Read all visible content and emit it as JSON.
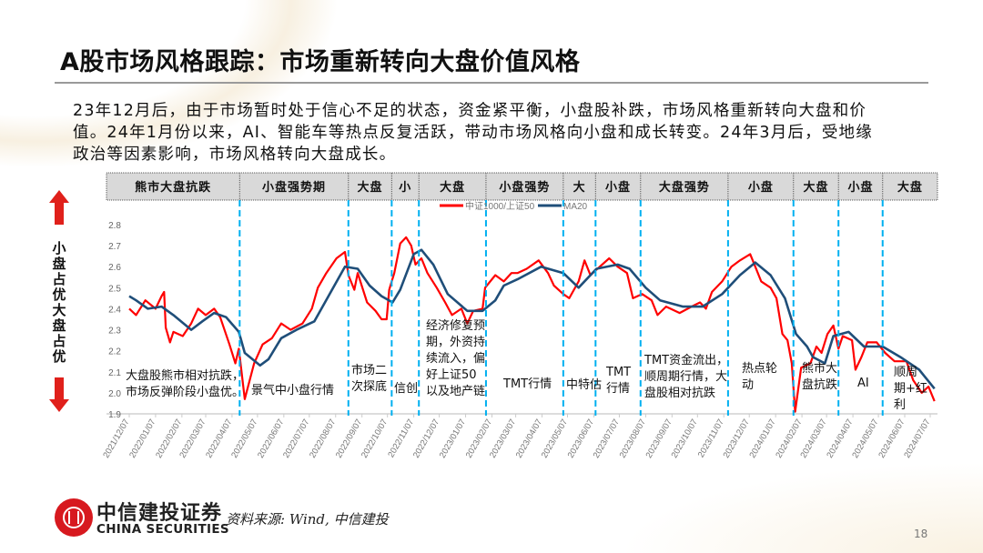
{
  "title": "A股市场风格跟踪：市场重新转向大盘价值风格",
  "paragraph_lines": [
    "23年12月后，由于市场暂时处于信心不足的状态，资金紧平衡，小盘股补跌，市场风格重新转向大盘和价",
    "值。24年1月份以来，AI、智能车等热点反复活跃，带动市场风格向小盘和成长转变。24年3月后，受地缘",
    "政治等因素影响，市场风格转向大盘成长。"
  ],
  "side_label": "小盘占优 大盘占优",
  "chart_data": {
    "type": "line",
    "ylim": [
      1.9,
      2.8
    ],
    "yticks": [
      "1.9",
      "2.0",
      "2.1",
      "2.2",
      "2.3",
      "2.4",
      "2.5",
      "2.6",
      "2.7",
      "2.8"
    ],
    "xlim": [
      "2021-12-07",
      "2024-07-07"
    ],
    "xticks": [
      "2021/12/07",
      "2022/01/07",
      "2022/02/07",
      "2022/03/07",
      "2022/04/07",
      "2022/05/07",
      "2022/06/07",
      "2022/07/07",
      "2022/08/07",
      "2022/09/07",
      "2022/10/07",
      "2022/11/07",
      "2022/12/07",
      "2023/01/07",
      "2023/02/07",
      "2023/03/07",
      "2023/04/07",
      "2023/05/07",
      "2023/06/07",
      "2023/07/07",
      "2023/08/07",
      "2023/09/07",
      "2023/10/07",
      "2023/11/07",
      "2023/12/07",
      "2024/01/07",
      "2024/02/07",
      "2024/03/07",
      "2024/04/07",
      "2024/05/07",
      "2024/06/07",
      "2024/07/07"
    ],
    "grid": false,
    "legend_position": "top-center",
    "series": [
      {
        "name": "中证1000/上证50",
        "color": "#ff0000",
        "points": [
          [
            "2021-12-07",
            2.4
          ],
          [
            "2021-12-15",
            2.37
          ],
          [
            "2021-12-26",
            2.44
          ],
          [
            "2022-01-07",
            2.4
          ],
          [
            "2022-01-14",
            2.46
          ],
          [
            "2022-01-17",
            2.48
          ],
          [
            "2022-01-19",
            2.31
          ],
          [
            "2022-01-24",
            2.24
          ],
          [
            "2022-01-28",
            2.29
          ],
          [
            "2022-02-08",
            2.27
          ],
          [
            "2022-02-18",
            2.33
          ],
          [
            "2022-02-26",
            2.4
          ],
          [
            "2022-03-07",
            2.37
          ],
          [
            "2022-03-17",
            2.4
          ],
          [
            "2022-03-24",
            2.36
          ],
          [
            "2022-04-04",
            2.23
          ],
          [
            "2022-04-11",
            2.14
          ],
          [
            "2022-04-15",
            2.21
          ],
          [
            "2022-04-22",
            1.97
          ],
          [
            "2022-05-03",
            2.14
          ],
          [
            "2022-05-13",
            2.23
          ],
          [
            "2022-05-24",
            2.26
          ],
          [
            "2022-06-04",
            2.33
          ],
          [
            "2022-06-15",
            2.3
          ],
          [
            "2022-06-29",
            2.33
          ],
          [
            "2022-07-10",
            2.4
          ],
          [
            "2022-07-17",
            2.5
          ],
          [
            "2022-07-27",
            2.57
          ],
          [
            "2022-08-08",
            2.64
          ],
          [
            "2022-08-18",
            2.67
          ],
          [
            "2022-08-22",
            2.56
          ],
          [
            "2022-08-29",
            2.49
          ],
          [
            "2022-09-02",
            2.57
          ],
          [
            "2022-09-13",
            2.43
          ],
          [
            "2022-09-23",
            2.39
          ],
          [
            "2022-09-30",
            2.35
          ],
          [
            "2022-10-06",
            2.35
          ],
          [
            "2022-10-09",
            2.49
          ],
          [
            "2022-10-15",
            2.57
          ],
          [
            "2022-10-22",
            2.71
          ],
          [
            "2022-10-29",
            2.74
          ],
          [
            "2022-11-04",
            2.7
          ],
          [
            "2022-11-09",
            2.61
          ],
          [
            "2022-11-16",
            2.64
          ],
          [
            "2022-11-23",
            2.57
          ],
          [
            "2022-12-04",
            2.5
          ],
          [
            "2022-12-14",
            2.43
          ],
          [
            "2022-12-22",
            2.37
          ],
          [
            "2023-01-02",
            2.4
          ],
          [
            "2023-01-09",
            2.33
          ],
          [
            "2023-01-16",
            2.39
          ],
          [
            "2023-01-27",
            2.4
          ],
          [
            "2023-01-30",
            2.5
          ],
          [
            "2023-02-11",
            2.56
          ],
          [
            "2023-02-21",
            2.53
          ],
          [
            "2023-03-02",
            2.57
          ],
          [
            "2023-03-09",
            2.57
          ],
          [
            "2023-03-20",
            2.59
          ],
          [
            "2023-04-03",
            2.63
          ],
          [
            "2023-04-14",
            2.57
          ],
          [
            "2023-04-21",
            2.51
          ],
          [
            "2023-05-02",
            2.47
          ],
          [
            "2023-05-09",
            2.45
          ],
          [
            "2023-05-20",
            2.53
          ],
          [
            "2023-05-27",
            2.63
          ],
          [
            "2023-06-03",
            2.56
          ],
          [
            "2023-06-14",
            2.6
          ],
          [
            "2023-06-25",
            2.64
          ],
          [
            "2023-07-05",
            2.6
          ],
          [
            "2023-07-16",
            2.57
          ],
          [
            "2023-07-23",
            2.45
          ],
          [
            "2023-08-03",
            2.47
          ],
          [
            "2023-08-14",
            2.44
          ],
          [
            "2023-08-21",
            2.37
          ],
          [
            "2023-08-31",
            2.41
          ],
          [
            "2023-09-16",
            2.38
          ],
          [
            "2023-09-30",
            2.41
          ],
          [
            "2023-10-10",
            2.43
          ],
          [
            "2023-10-17",
            2.4
          ],
          [
            "2023-10-24",
            2.48
          ],
          [
            "2023-11-05",
            2.53
          ],
          [
            "2023-11-16",
            2.6
          ],
          [
            "2023-11-26",
            2.63
          ],
          [
            "2023-12-08",
            2.66
          ],
          [
            "2023-12-14",
            2.6
          ],
          [
            "2023-12-21",
            2.53
          ],
          [
            "2024-01-01",
            2.5
          ],
          [
            "2024-01-08",
            2.45
          ],
          [
            "2024-01-15",
            2.28
          ],
          [
            "2024-01-21",
            2.25
          ],
          [
            "2024-01-26",
            2.14
          ],
          [
            "2024-01-30",
            1.91
          ],
          [
            "2024-02-06",
            2.12
          ],
          [
            "2024-02-17",
            2.14
          ],
          [
            "2024-02-24",
            2.22
          ],
          [
            "2024-03-01",
            2.19
          ],
          [
            "2024-03-08",
            2.28
          ],
          [
            "2024-03-15",
            2.32
          ],
          [
            "2024-03-21",
            2.21
          ],
          [
            "2024-03-26",
            2.27
          ],
          [
            "2024-04-06",
            2.25
          ],
          [
            "2024-04-10",
            2.11
          ],
          [
            "2024-04-17",
            2.17
          ],
          [
            "2024-04-24",
            2.24
          ],
          [
            "2024-05-05",
            2.24
          ],
          [
            "2024-05-15",
            2.19
          ],
          [
            "2024-05-26",
            2.15
          ],
          [
            "2024-06-09",
            2.15
          ],
          [
            "2024-06-17",
            2.06
          ],
          [
            "2024-06-27",
            2.0
          ],
          [
            "2024-07-05",
            2.03
          ],
          [
            "2024-07-12",
            1.96
          ]
        ]
      },
      {
        "name": "MA20",
        "color": "#1f4e79",
        "points": [
          [
            "2021-12-07",
            2.46
          ],
          [
            "2021-12-15",
            2.44
          ],
          [
            "2021-12-29",
            2.4
          ],
          [
            "2022-01-14",
            2.41
          ],
          [
            "2022-01-28",
            2.37
          ],
          [
            "2022-02-18",
            2.3
          ],
          [
            "2022-03-03",
            2.34
          ],
          [
            "2022-03-17",
            2.38
          ],
          [
            "2022-03-31",
            2.36
          ],
          [
            "2022-04-15",
            2.29
          ],
          [
            "2022-04-22",
            2.19
          ],
          [
            "2022-05-10",
            2.13
          ],
          [
            "2022-05-20",
            2.16
          ],
          [
            "2022-06-04",
            2.26
          ],
          [
            "2022-06-22",
            2.3
          ],
          [
            "2022-07-13",
            2.34
          ],
          [
            "2022-07-31",
            2.47
          ],
          [
            "2022-08-18",
            2.6
          ],
          [
            "2022-09-02",
            2.59
          ],
          [
            "2022-09-16",
            2.51
          ],
          [
            "2022-09-30",
            2.46
          ],
          [
            "2022-10-13",
            2.43
          ],
          [
            "2022-10-22",
            2.49
          ],
          [
            "2022-11-07",
            2.66
          ],
          [
            "2022-11-16",
            2.68
          ],
          [
            "2022-11-30",
            2.61
          ],
          [
            "2022-12-17",
            2.47
          ],
          [
            "2023-01-09",
            2.39
          ],
          [
            "2023-01-27",
            2.39
          ],
          [
            "2023-02-11",
            2.44
          ],
          [
            "2023-02-21",
            2.51
          ],
          [
            "2023-03-09",
            2.54
          ],
          [
            "2023-04-06",
            2.6
          ],
          [
            "2023-05-02",
            2.57
          ],
          [
            "2023-05-20",
            2.5
          ],
          [
            "2023-06-10",
            2.59
          ],
          [
            "2023-07-05",
            2.61
          ],
          [
            "2023-07-19",
            2.59
          ],
          [
            "2023-08-07",
            2.5
          ],
          [
            "2023-08-24",
            2.44
          ],
          [
            "2023-09-20",
            2.41
          ],
          [
            "2023-10-13",
            2.41
          ],
          [
            "2023-11-05",
            2.47
          ],
          [
            "2023-11-26",
            2.56
          ],
          [
            "2023-12-14",
            2.62
          ],
          [
            "2024-01-01",
            2.56
          ],
          [
            "2024-01-18",
            2.45
          ],
          [
            "2024-01-31",
            2.28
          ],
          [
            "2024-02-13",
            2.22
          ],
          [
            "2024-02-20",
            2.17
          ],
          [
            "2024-03-05",
            2.14
          ],
          [
            "2024-03-15",
            2.27
          ],
          [
            "2024-04-02",
            2.29
          ],
          [
            "2024-04-20",
            2.22
          ],
          [
            "2024-05-12",
            2.22
          ],
          [
            "2024-06-02",
            2.17
          ],
          [
            "2024-06-24",
            2.11
          ],
          [
            "2024-07-12",
            2.02
          ]
        ]
      }
    ],
    "phase_dividers": [
      "2022-04-16",
      "2022-08-22",
      "2022-10-12",
      "2022-11-13",
      "2023-01-31",
      "2023-05-02",
      "2023-06-09",
      "2023-08-01",
      "2023-11-12",
      "2024-01-28",
      "2024-03-21",
      "2024-05-12"
    ],
    "divider_color": "#00b0f0",
    "phases": [
      "熊市大盘抗跌",
      "小盘强势期",
      "大盘",
      "小",
      "大盘",
      "小盘强势",
      "大",
      "小盘",
      "大盘强势",
      "小盘",
      "大盘",
      "小盘",
      "大盘"
    ],
    "annotations": [
      {
        "text": "大盘股熊市相对抗跌，\n市场反弹阶段小盘优。"
      },
      {
        "text": "景气中小盘行情"
      },
      {
        "text": "市场二\n次探底"
      },
      {
        "text": "信创"
      },
      {
        "text": "经济修复预\n期，外资持\n续流入，偏\n好上证50\n以及地产链"
      },
      {
        "text": "TMT行情"
      },
      {
        "text": "中特估"
      },
      {
        "text": "TMT\n行情"
      },
      {
        "text": "TMT资金流出，\n顺周期行情，大\n盘股相对抗跌"
      },
      {
        "text": "热点轮\n动"
      },
      {
        "text": "熊市大\n盘抗跌"
      },
      {
        "text": "AI"
      },
      {
        "text": "顺周\n期+红\n利"
      }
    ]
  },
  "footer": {
    "brand_cn": "中信建投证券",
    "brand_en": "CHINA SECURITIES",
    "source": "资料来源:  Wind,  中信建投",
    "page_number": "18"
  }
}
